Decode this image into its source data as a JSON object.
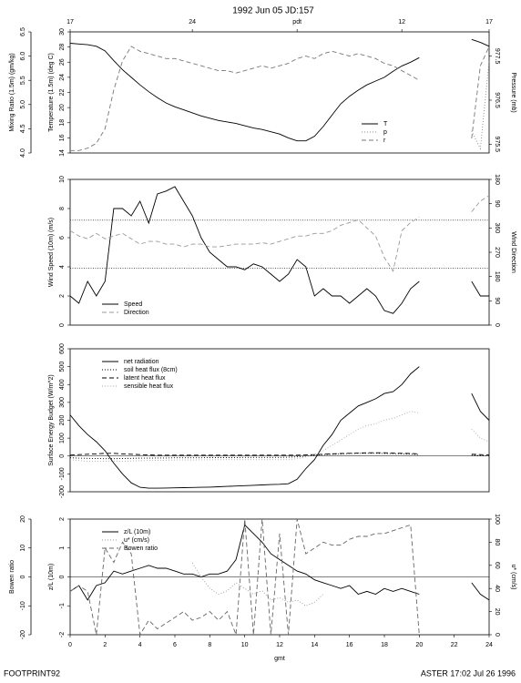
{
  "title": "1992 Jun 05 JD:157",
  "footer_left": "FOOTPRINT92",
  "footer_right": "ASTER 17:02 Jul 26 1996",
  "chart_data": [
    {
      "type": "line",
      "xlim": [
        0,
        24
      ],
      "x2ticks": [
        {
          "value": 0,
          "label": "17"
        },
        {
          "value": 7,
          "label": "24"
        },
        {
          "value": 13,
          "label": "pdt"
        },
        {
          "value": 19,
          "label": "12"
        },
        {
          "value": 24,
          "label": "17"
        }
      ],
      "x": [
        0,
        0.5,
        1,
        1.5,
        2,
        2.5,
        3,
        3.5,
        4,
        4.5,
        5,
        5.5,
        6,
        6.5,
        7,
        7.5,
        8,
        8.5,
        9,
        9.5,
        10,
        10.5,
        11,
        11.5,
        12,
        12.5,
        13,
        13.5,
        14,
        14.5,
        15,
        15.5,
        16,
        16.5,
        17,
        17.5,
        18,
        18.5,
        19,
        19.5,
        20,
        20.5,
        21,
        21.5,
        22,
        22.5,
        23,
        23.5,
        24
      ],
      "ylabel": "Temperature (1.5m) (deg C)",
      "ylim": [
        14,
        30
      ],
      "yticks": [
        14,
        16,
        18,
        20,
        22,
        24,
        26,
        28,
        30
      ],
      "y2label": "Pressure (mb)",
      "y2lim": [
        975.3,
        978.05
      ],
      "y2ticks": [
        975.5,
        976.5,
        977.5
      ],
      "y3label": "Mixing Ratio (1.5m) (gm/kg)",
      "y3lim": [
        4.0,
        6.5
      ],
      "y3ticks": [
        {
          "value": 4,
          "label": "4.0"
        },
        4.5,
        {
          "value": 5,
          "label": "5.0"
        },
        5.5,
        {
          "value": 6,
          "label": "6.0"
        },
        6.5
      ],
      "legend": "lower right",
      "series": [
        {
          "name": "T",
          "color": "#000000",
          "dash": "solid",
          "axis": "y",
          "values": [
            28.5,
            28.4,
            28.3,
            28.1,
            27.5,
            26.2,
            25,
            24,
            23,
            22.1,
            21.3,
            20.6,
            20.1,
            19.7,
            19.3,
            18.9,
            18.6,
            18.3,
            18.1,
            17.9,
            17.6,
            17.3,
            17.1,
            16.8,
            16.5,
            16,
            15.6,
            15.6,
            16.2,
            17.5,
            19,
            20.5,
            21.5,
            22.3,
            23,
            23.5,
            24,
            24.8,
            25.5,
            26,
            26.6,
            null,
            null,
            null,
            null,
            null,
            29,
            28.6,
            28.1
          ]
        },
        {
          "name": "p",
          "color": "#888888",
          "dash": "dotted",
          "axis": "y2",
          "values": [
            null,
            null,
            null,
            null,
            null,
            null,
            null,
            null,
            null,
            null,
            null,
            null,
            null,
            null,
            null,
            null,
            null,
            null,
            null,
            null,
            null,
            null,
            null,
            null,
            null,
            null,
            null,
            null,
            null,
            null,
            null,
            null,
            null,
            null,
            null,
            null,
            null,
            null,
            null,
            null,
            null,
            null,
            null,
            null,
            null,
            null,
            975.8,
            975.4,
            977.4
          ]
        },
        {
          "name": "r",
          "color": "#777777",
          "dash": "dashed",
          "axis": "y3",
          "values": [
            4.05,
            4.05,
            4.1,
            4.2,
            4.5,
            5.3,
            5.9,
            6.2,
            6.1,
            6.05,
            6.0,
            5.95,
            5.95,
            5.9,
            5.85,
            5.8,
            5.75,
            5.7,
            5.7,
            5.65,
            5.7,
            5.75,
            5.8,
            5.75,
            5.8,
            5.85,
            5.95,
            6.0,
            5.95,
            6.05,
            6.1,
            6.05,
            6.0,
            6.05,
            6.0,
            5.95,
            5.85,
            5.8,
            5.7,
            5.6,
            5.5,
            null,
            null,
            null,
            null,
            null,
            4.3,
            5.8,
            6.2
          ]
        }
      ]
    },
    {
      "type": "line",
      "xlim": [
        0,
        24
      ],
      "x": [
        0,
        0.5,
        1,
        1.5,
        2,
        2.5,
        3,
        3.5,
        4,
        4.5,
        5,
        5.5,
        6,
        6.5,
        7,
        7.5,
        8,
        8.5,
        9,
        9.5,
        10,
        10.5,
        11,
        11.5,
        12,
        12.5,
        13,
        13.5,
        14,
        14.5,
        15,
        15.5,
        16,
        16.5,
        17,
        17.5,
        18,
        18.5,
        19,
        19.5,
        20,
        20.5,
        21,
        21.5,
        22,
        22.5,
        23,
        23.5,
        24
      ],
      "ylabel": "Wind Speed (10m) (m/s)",
      "ylim": [
        0,
        10
      ],
      "yticks": [
        0,
        2,
        4,
        6,
        8,
        10
      ],
      "y2label": "Wind Direction",
      "y2lim": [
        0,
        540
      ],
      "y2ticks": [
        0,
        90,
        180,
        270,
        360,
        {
          "value": 450,
          "label": "90"
        },
        {
          "value": 540,
          "label": "180"
        }
      ],
      "reference_lines": [
        7.2,
        3.9
      ],
      "legend": "lower left",
      "series": [
        {
          "name": "Speed",
          "color": "#000000",
          "dash": "solid",
          "axis": "y",
          "values": [
            2,
            1.5,
            3,
            2,
            3,
            8,
            8,
            7.5,
            8.5,
            7,
            9,
            9.2,
            9.5,
            8.5,
            7.5,
            6,
            5,
            4.5,
            4,
            4,
            3.8,
            4.2,
            4,
            3.5,
            3,
            3.5,
            4.5,
            4,
            2,
            2.5,
            2,
            2,
            1.5,
            2,
            2.5,
            2,
            1,
            0.8,
            1.5,
            2.5,
            3,
            null,
            null,
            null,
            null,
            null,
            3,
            2,
            2
          ]
        },
        {
          "name": "Direction",
          "color": "#999999",
          "dash": "dashed",
          "axis": "y2",
          "values": [
            350,
            330,
            320,
            340,
            320,
            330,
            340,
            320,
            300,
            310,
            310,
            300,
            300,
            290,
            300,
            300,
            290,
            290,
            295,
            300,
            300,
            300,
            305,
            300,
            310,
            320,
            330,
            330,
            340,
            340,
            350,
            370,
            380,
            390,
            360,
            330,
            250,
            200,
            350,
            380,
            400,
            null,
            null,
            null,
            null,
            null,
            420,
            460,
            480
          ]
        }
      ]
    },
    {
      "type": "line",
      "xlim": [
        0,
        24
      ],
      "x": [
        0,
        0.5,
        1,
        1.5,
        2,
        2.5,
        3,
        3.5,
        4,
        4.5,
        5,
        5.5,
        6,
        6.5,
        7,
        7.5,
        8,
        8.5,
        9,
        9.5,
        10,
        10.5,
        11,
        11.5,
        12,
        12.5,
        13,
        13.5,
        14,
        14.5,
        15,
        15.5,
        16,
        16.5,
        17,
        17.5,
        18,
        18.5,
        19,
        19.5,
        20,
        20.5,
        21,
        21.5,
        22,
        22.5,
        23,
        23.5,
        24
      ],
      "ylabel": "Surface Energy Budget (W/m^2)",
      "ylim": [
        -200,
        600
      ],
      "yticks": [
        -200,
        -100,
        0,
        100,
        200,
        300,
        400,
        500,
        600
      ],
      "reference_lines": [
        0
      ],
      "legend": "upper left",
      "series": [
        {
          "name": "net radiation",
          "color": "#000000",
          "dash": "solid",
          "axis": "y",
          "values": [
            230,
            170,
            120,
            80,
            30,
            -40,
            -100,
            -150,
            -175,
            -180,
            -180,
            -179,
            -178,
            -177,
            -176,
            -175,
            -174,
            -172,
            -170,
            -168,
            -166,
            -164,
            -162,
            -160,
            -158,
            -155,
            -130,
            -70,
            -20,
            60,
            120,
            200,
            240,
            280,
            300,
            320,
            350,
            360,
            400,
            460,
            500,
            null,
            null,
            null,
            null,
            null,
            350,
            250,
            200
          ]
        },
        {
          "name": "soil heat flux (8cm)",
          "color": "#000000",
          "dash": "dotted",
          "axis": "y",
          "values": [
            -10,
            -12,
            -13,
            -14,
            -15,
            -15,
            -14,
            -13,
            -12,
            -12,
            -11,
            -11,
            -10,
            -10,
            -10,
            -10,
            -9,
            -9,
            -9,
            -9,
            -8,
            -8,
            -8,
            -8,
            -8,
            -7,
            -5,
            0,
            5,
            8,
            10,
            12,
            14,
            15,
            15,
            15,
            14,
            13,
            12,
            10,
            8,
            null,
            null,
            null,
            null,
            null,
            5,
            3,
            0
          ]
        },
        {
          "name": "latent heat flux",
          "color": "#000000",
          "dash": "dashed",
          "axis": "y",
          "values": [
            5,
            8,
            10,
            12,
            15,
            15,
            12,
            10,
            8,
            6,
            5,
            5,
            5,
            5,
            5,
            5,
            5,
            5,
            5,
            5,
            5,
            5,
            5,
            5,
            5,
            5,
            5,
            6,
            8,
            10,
            12,
            14,
            15,
            16,
            18,
            18,
            18,
            16,
            15,
            14,
            12,
            null,
            null,
            null,
            null,
            null,
            10,
            8,
            6
          ]
        },
        {
          "name": "sensible heat flux",
          "color": "#aaaaaa",
          "dash": "dotted",
          "axis": "y",
          "values": [
            -20,
            -25,
            -30,
            -30,
            -30,
            -30,
            -30,
            -28,
            -26,
            -25,
            -24,
            -23,
            -22,
            -22,
            -22,
            -21,
            -21,
            -20,
            -20,
            -20,
            -20,
            -20,
            -20,
            -20,
            -20,
            -20,
            -15,
            -5,
            10,
            30,
            60,
            90,
            120,
            150,
            170,
            180,
            200,
            210,
            230,
            250,
            240,
            null,
            null,
            null,
            null,
            null,
            150,
            100,
            80
          ]
        }
      ]
    },
    {
      "type": "line",
      "xlim": [
        0,
        24
      ],
      "xlabel": "gmt",
      "xticks": [
        0,
        2,
        4,
        6,
        8,
        10,
        12,
        14,
        16,
        18,
        20,
        22,
        24
      ],
      "x": [
        0,
        0.5,
        1,
        1.5,
        2,
        2.5,
        3,
        3.5,
        4,
        4.5,
        5,
        5.5,
        6,
        6.5,
        7,
        7.5,
        8,
        8.5,
        9,
        9.5,
        10,
        10.5,
        11,
        11.5,
        12,
        12.5,
        13,
        13.5,
        14,
        14.5,
        15,
        15.5,
        16,
        16.5,
        17,
        17.5,
        18,
        18.5,
        19,
        19.5,
        20,
        20.5,
        21,
        21.5,
        22,
        22.5,
        23,
        23.5,
        24
      ],
      "ylabel": "z/L (10m)",
      "ylim": [
        -2,
        2
      ],
      "yticks": [
        -2,
        -1,
        0,
        1,
        2
      ],
      "y2label": "u* (cm/s)",
      "y2lim": [
        0,
        100
      ],
      "y2ticks": [
        0,
        20,
        40,
        60,
        80,
        100
      ],
      "y3label": "Bowen ratio",
      "y3lim": [
        -20,
        20
      ],
      "y3ticks": [
        -20,
        -10,
        0,
        10,
        20
      ],
      "reference_lines": [
        0
      ],
      "legend": "upper left",
      "series": [
        {
          "name": "z/L (10m)",
          "color": "#000000",
          "dash": "solid",
          "axis": "y",
          "values": [
            -0.5,
            -0.3,
            -0.8,
            -0.3,
            -0.2,
            0.2,
            0.1,
            0.2,
            0.3,
            0.4,
            0.3,
            0.3,
            0.2,
            0.1,
            0.1,
            0,
            0.1,
            0.1,
            0.2,
            0.6,
            1.8,
            1.5,
            1.2,
            0.8,
            0.6,
            0.4,
            0.2,
            0.1,
            -0.1,
            -0.2,
            -0.3,
            -0.4,
            -0.3,
            -0.6,
            -0.5,
            -0.6,
            -0.4,
            -0.5,
            -0.4,
            -0.5,
            -0.6,
            null,
            null,
            null,
            null,
            null,
            -0.2,
            -0.6,
            -0.8
          ]
        },
        {
          "name": "u* (cm/s)",
          "color": "#999999",
          "dash": "dotted",
          "axis": "y2",
          "values": [
            null,
            null,
            null,
            null,
            null,
            null,
            null,
            null,
            null,
            null,
            null,
            null,
            null,
            null,
            62,
            50,
            40,
            35,
            38,
            45,
            40,
            35,
            38,
            30,
            32,
            28,
            30,
            25,
            28,
            35,
            null,
            null,
            null,
            null,
            null,
            null,
            null,
            null,
            null,
            null,
            null,
            null,
            null,
            null,
            null,
            null,
            null,
            null,
            null
          ]
        },
        {
          "name": "Bowen ratio",
          "color": "#666666",
          "dash": "dashed",
          "axis": "y3",
          "values": [
            -5,
            -3,
            -5,
            -20,
            10,
            5,
            12,
            8,
            -20,
            -15,
            -18,
            -16,
            -14,
            -12,
            -15,
            -14,
            -12,
            -15,
            -12,
            -20,
            20,
            -20,
            20,
            -20,
            15,
            -20,
            20,
            8,
            10,
            12,
            11,
            11,
            13,
            14,
            14,
            15,
            15,
            16,
            17,
            18,
            -20,
            null,
            null,
            null,
            null,
            null,
            null,
            null,
            null
          ]
        }
      ]
    }
  ]
}
